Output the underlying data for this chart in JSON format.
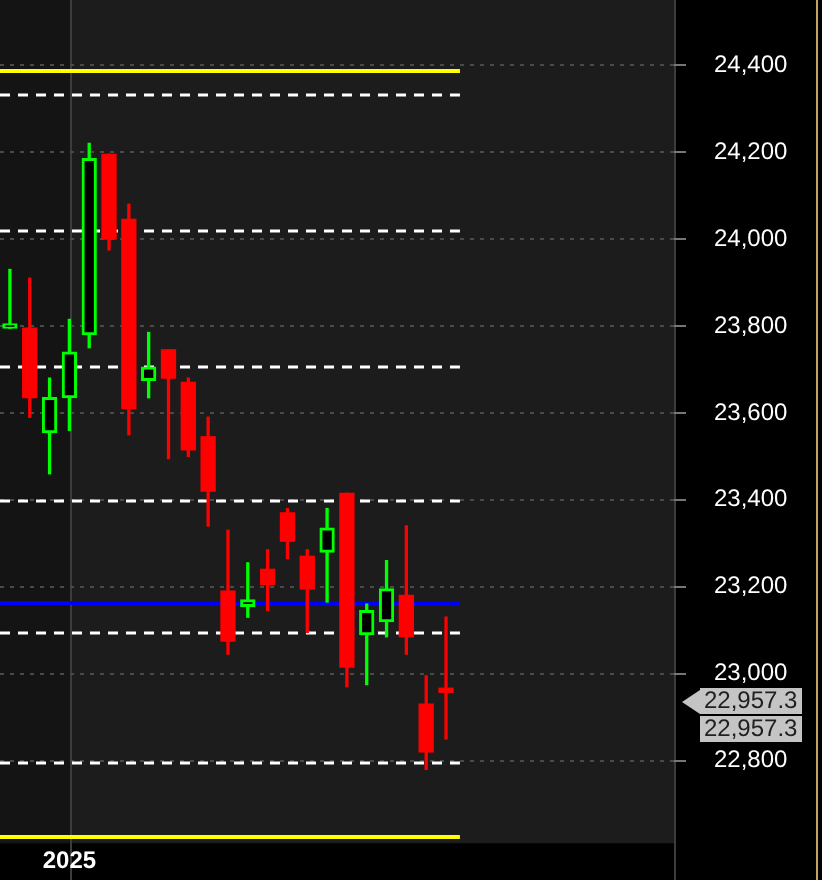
{
  "chart_data": {
    "type": "candlestick",
    "categories": [
      null,
      null,
      null,
      "2025",
      null,
      null,
      null,
      null,
      null,
      null,
      null,
      null,
      null,
      null,
      null,
      null,
      null,
      null,
      null,
      null,
      null,
      null,
      null,
      null,
      null,
      null,
      null,
      null,
      null,
      null,
      null,
      null,
      null,
      null
    ],
    "ohlc": [
      [
        23795,
        23930,
        23795,
        23805
      ],
      [
        23795,
        23910,
        23590,
        23635
      ],
      [
        23555,
        23680,
        23460,
        23635
      ],
      [
        23635,
        23815,
        23560,
        23740
      ],
      [
        23780,
        24220,
        23750,
        24185
      ],
      [
        24195,
        24195,
        23975,
        24000
      ],
      [
        24045,
        24080,
        23550,
        23610
      ],
      [
        23675,
        23785,
        23635,
        23705
      ],
      [
        23745,
        23745,
        23495,
        23680
      ],
      [
        23670,
        23680,
        23500,
        23515
      ],
      [
        23545,
        23590,
        23340,
        23420
      ],
      [
        23190,
        23330,
        23045,
        23075
      ],
      [
        23155,
        23255,
        23130,
        23170
      ],
      [
        23240,
        23285,
        23145,
        23205
      ],
      [
        23370,
        23380,
        23265,
        23305
      ],
      [
        23270,
        23285,
        23095,
        23195
      ],
      [
        23280,
        23380,
        23165,
        23335
      ],
      [
        23415,
        23415,
        22970,
        23015
      ],
      [
        23090,
        23160,
        22975,
        23145
      ],
      [
        23120,
        23260,
        23085,
        23195
      ],
      [
        23180,
        23340,
        23045,
        23085
      ],
      [
        22930,
        22995,
        22780,
        22820
      ],
      [
        22966,
        23130,
        22850,
        22957.3
      ],
      null,
      null,
      null,
      null,
      null,
      null,
      null,
      null,
      null,
      null,
      null
    ],
    "colors": [
      "#00ff00",
      "#ff0000",
      "#00ff00",
      "#00ff00",
      "#00ff00",
      "#ff0000",
      "#ff0000",
      "#00ff00",
      "#ff0000",
      "#ff0000",
      "#ff0000",
      "#ff0000",
      "#00ff00",
      "#ff0000",
      "#ff0000",
      "#ff0000",
      "#00ff00",
      "#ff0000",
      "#00ff00",
      "#00ff00",
      "#ff0000",
      "#ff0000",
      "#ff0000",
      null,
      null,
      null,
      null,
      null,
      null,
      null,
      null,
      null,
      null,
      null
    ],
    "ylim": [
      22610,
      24550
    ],
    "yticks": [
      {
        "value": 22800,
        "label": "22,800"
      },
      {
        "value": 23000,
        "label": "23,000"
      },
      {
        "value": 23200,
        "label": "23,200"
      },
      {
        "value": 23400,
        "label": "23,400"
      },
      {
        "value": 23600,
        "label": "23,600"
      },
      {
        "value": 23800,
        "label": "23,800"
      },
      {
        "value": 24000,
        "label": "24,000"
      },
      {
        "value": 24200,
        "label": "24,200"
      },
      {
        "value": 24400,
        "label": "24,400"
      }
    ],
    "grid": "y",
    "ref_lines": [
      {
        "axis": "y",
        "value": 24390,
        "color": "#ffff00",
        "line_style": "solid"
      },
      {
        "axis": "y",
        "value": 22627,
        "color": "#ffff00",
        "line_style": "solid"
      },
      {
        "axis": "y",
        "value": 24335,
        "color": "#ffffff",
        "line_style": "dashed"
      },
      {
        "axis": "y",
        "value": 24020,
        "color": "#ffffff",
        "line_style": "dashed"
      },
      {
        "axis": "y",
        "value": 23710,
        "color": "#ffffff",
        "line_style": "dashed"
      },
      {
        "axis": "y",
        "value": 23400,
        "color": "#ffffff",
        "line_style": "dashed"
      },
      {
        "axis": "y",
        "value": 23095,
        "color": "#ffffff",
        "line_style": "dashed"
      },
      {
        "axis": "y",
        "value": 22795,
        "color": "#ffffff",
        "line_style": "dashed"
      },
      {
        "axis": "y",
        "value": 23165,
        "color": "#0000ff",
        "line_style": "solid"
      }
    ],
    "annotations": [
      "22,957.3",
      "22,957.3"
    ]
  }
}
